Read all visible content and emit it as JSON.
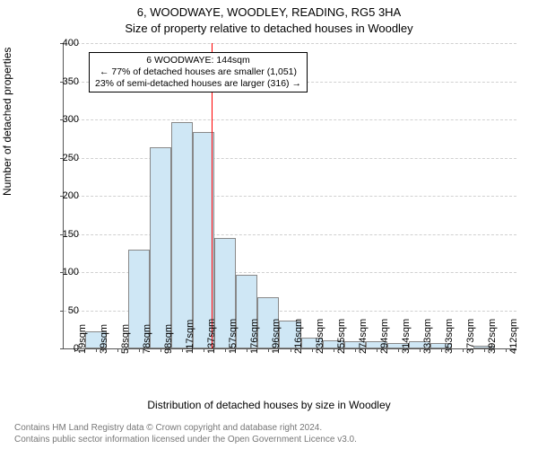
{
  "title_line1": "6, WOODWAYE, WOODLEY, READING, RG5 3HA",
  "title_line2": "Size of property relative to detached houses in Woodley",
  "y_axis_label": "Number of detached properties",
  "x_axis_label": "Distribution of detached houses by size in Woodley",
  "footer_line1": "Contains HM Land Registry data © Crown copyright and database right 2024.",
  "footer_line2": "Contains public sector information licensed under the Open Government Licence v3.0.",
  "chart": {
    "type": "histogram",
    "ylim": [
      0,
      400
    ],
    "ytick_step": 50,
    "background_color": "#ffffff",
    "grid_color": "#d0d0d0",
    "bar_fill": "#cfe7f5",
    "bar_border": "#888888",
    "marker_color": "#ff0000",
    "axis_color": "#555555",
    "tick_fontsize": 11,
    "label_fontsize": 12,
    "title_fontsize": 13,
    "x_categories": [
      "19sqm",
      "39sqm",
      "58sqm",
      "78sqm",
      "98sqm",
      "117sqm",
      "137sqm",
      "157sqm",
      "176sqm",
      "196sqm",
      "216sqm",
      "235sqm",
      "255sqm",
      "274sqm",
      "294sqm",
      "314sqm",
      "333sqm",
      "353sqm",
      "373sqm",
      "392sqm",
      "412sqm"
    ],
    "values": [
      0,
      22,
      0,
      130,
      263,
      296,
      283,
      145,
      97,
      67,
      37,
      14,
      11,
      9,
      9,
      7,
      9,
      7,
      0,
      4,
      0
    ],
    "marker_value_sqm": 144,
    "marker_bin_index": 6.35,
    "annotation": {
      "line1": "6 WOODWAYE: 144sqm",
      "line2": "← 77% of detached houses are smaller (1,051)",
      "line3": "23% of semi-detached houses are larger (316) →"
    }
  }
}
